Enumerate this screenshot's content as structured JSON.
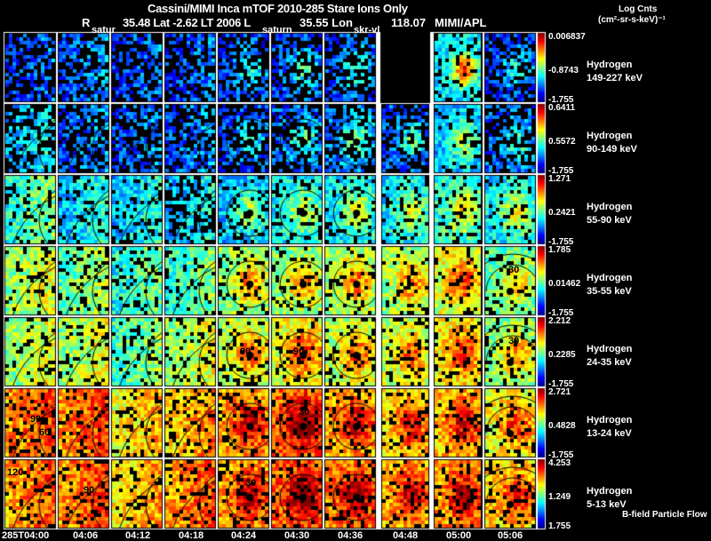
{
  "chart_data": {
    "type": "heatmap",
    "title": "Cassini/MIMI Inca mTOF  2010-285   Stare   Ions Only",
    "subtitle": {
      "r_label": "R",
      "lat_text": "35.48 Lat -2.62 LT 2006 L",
      "lon_text": "35.55 Lon",
      "r_value": "118.07",
      "source": "MIMI/APL"
    },
    "colorbar_title": [
      "Log Cnts",
      "(cm²-sr-s-keV)⁻¹"
    ],
    "column_overlay_labels": [
      {
        "column": 1,
        "text": "satur"
      },
      {
        "column": 5,
        "text": "saturn"
      },
      {
        "column": 6,
        "text": "skr-vl"
      }
    ],
    "time_ticks": [
      "285T04:00",
      "04:06",
      "04:12",
      "04:18",
      "04:24",
      "04:30",
      "04:36",
      "04:48",
      "05:00",
      "05:06"
    ],
    "rows": [
      {
        "species": "Hydrogen",
        "energy": "149-227 keV",
        "max": "0.006837",
        "mid": "-0.8743",
        "min": "-1.755",
        "intensity": [
          0.15,
          0.18,
          0.15,
          0.15,
          0.17,
          0.17,
          0.18,
          0.0,
          0.35,
          0.15
        ]
      },
      {
        "species": "Hydrogen",
        "energy": "90-149 keV",
        "max": "0.6411",
        "mid": "0.5572",
        "min": "-1.755",
        "intensity": [
          0.28,
          0.18,
          0.17,
          0.18,
          0.17,
          0.2,
          0.24,
          0.2,
          0.3,
          0.2
        ]
      },
      {
        "species": "Hydrogen",
        "energy": "55-90 keV",
        "max": "1.271",
        "mid": "0.2421",
        "min": "-1.755",
        "intensity": [
          0.4,
          0.3,
          0.3,
          0.28,
          0.3,
          0.35,
          0.35,
          0.35,
          0.4,
          0.35
        ]
      },
      {
        "species": "Hydrogen",
        "energy": "35-55 keV",
        "max": "1.785",
        "mid": "0.01462",
        "min": "-1.755",
        "intensity": [
          0.5,
          0.45,
          0.38,
          0.4,
          0.5,
          0.5,
          0.52,
          0.52,
          0.58,
          0.45
        ]
      },
      {
        "species": "Hydrogen",
        "energy": "24-35 keV",
        "max": "2.212",
        "mid": "0.2285",
        "min": "-1.755",
        "intensity": [
          0.5,
          0.5,
          0.42,
          0.5,
          0.55,
          0.6,
          0.55,
          0.55,
          0.62,
          0.5
        ]
      },
      {
        "species": "Hydrogen",
        "energy": "13-24 keV",
        "max": "2.721",
        "mid": "0.4828",
        "min": "-1.755",
        "intensity": [
          0.72,
          0.72,
          0.6,
          0.65,
          0.7,
          0.78,
          0.7,
          0.65,
          0.68,
          0.6
        ]
      },
      {
        "species": "Hydrogen",
        "energy": "5-13 keV",
        "max": "4.253",
        "mid": "1.249",
        "min": "1.755",
        "intensity": [
          0.7,
          0.72,
          0.62,
          0.7,
          0.72,
          0.78,
          0.75,
          0.7,
          0.72,
          0.65
        ]
      }
    ],
    "contour_labels": [
      "120",
      "90",
      "60",
      "30"
    ],
    "footer_note": "B-field Particle Flow"
  }
}
